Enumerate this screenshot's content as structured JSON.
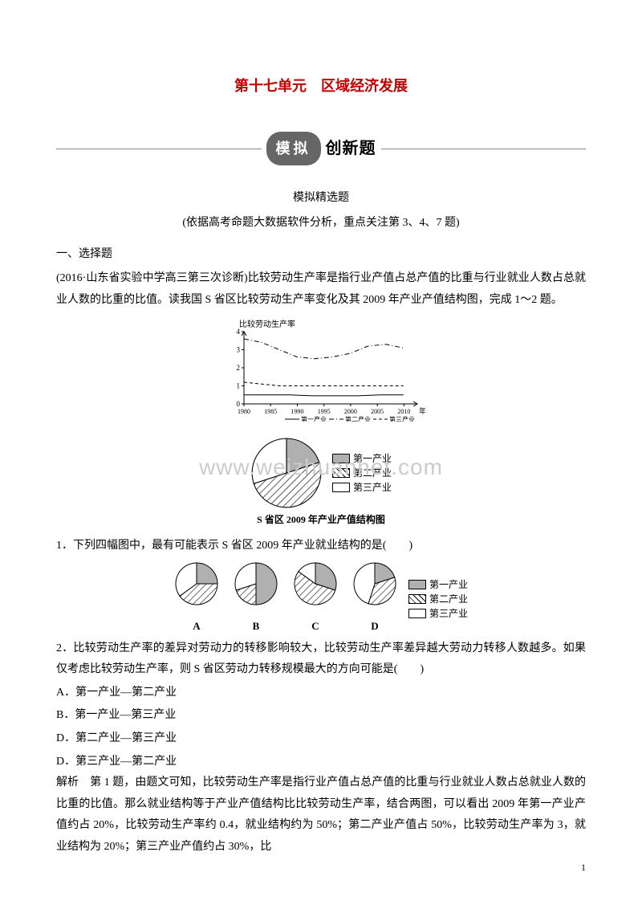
{
  "title": "第十七单元　区域经济发展",
  "banner": {
    "pill": "模拟",
    "text": "创新题"
  },
  "subTitle": "模拟精选题",
  "subNote": "(依据高考命题大数据软件分析，重点关注第 3、4、7 题)",
  "sectionHead": "一、选择题",
  "intro": "(2016·山东省实验中学高三第三次诊断)比较劳动生产率是指行业产值占总产值的比重与行业就业人数占总就业人数的比重的比值。读我国 S 省区比较劳动生产率变化及其 2009 年产业产值结构图，完成 1～2 题。",
  "lineChart": {
    "yLabel": "比较劳动生产率",
    "xTicks": [
      "1980",
      "1985",
      "1990",
      "1995",
      "2000",
      "2005",
      "2010"
    ],
    "xUnit": "年",
    "yTicks": [
      0,
      1,
      2,
      3,
      4
    ],
    "series": {
      "s1": {
        "label": "第一产业",
        "style": "solid",
        "values": [
          0.5,
          0.5,
          0.5,
          0.45,
          0.45,
          0.45,
          0.5,
          0.5
        ]
      },
      "s2": {
        "label": "第二产业",
        "style": "dashdot",
        "values": [
          3.6,
          3.4,
          3.0,
          2.6,
          2.5,
          2.6,
          2.8,
          3.2,
          3.3,
          3.1
        ]
      },
      "s3": {
        "label": "第三产业",
        "style": "dashed",
        "values": [
          1.2,
          1.1,
          1.0,
          1.0,
          1.0,
          1.0,
          1.0,
          1.0,
          1.0,
          1.0
        ]
      }
    },
    "colors": {
      "axis": "#000000",
      "grid": "#aaaaaa",
      "line": "#000000",
      "bg": "#ffffff"
    }
  },
  "mainPie": {
    "caption": "S 省区 2009 年产业产值结构图",
    "slices": [
      {
        "label": "第一产业",
        "value": 20,
        "fill": "solid-gray"
      },
      {
        "label": "第二产业",
        "value": 50,
        "fill": "hatch"
      },
      {
        "label": "第三产业",
        "value": 30,
        "fill": "white"
      }
    ],
    "colors": {
      "solid": "#b0b0b0",
      "white": "#ffffff",
      "stroke": "#000000"
    }
  },
  "q1": "1．下列四幅图中，最有可能表示 S 省区 2009 年产业就业结构的是(　　)",
  "optionPies": {
    "legend": [
      "第一产业",
      "第二产业",
      "第三产业"
    ],
    "items": [
      {
        "id": "A",
        "slices": [
          25,
          40,
          35
        ]
      },
      {
        "id": "B",
        "slices": [
          50,
          20,
          30
        ]
      },
      {
        "id": "C",
        "slices": [
          30,
          55,
          15
        ]
      },
      {
        "id": "D",
        "slices": [
          20,
          35,
          45
        ]
      }
    ]
  },
  "q2": "2．比较劳动生产率的差异对劳动力的转移影响较大，比较劳动生产率差异越大劳动力转移人数越多。如果仅考虑比较劳动生产率，则 S 省区劳动力转移规模最大的方向可能是(　　)",
  "choices": [
    "A．第一产业—第二产业",
    "B．第一产业—第三产业",
    "D．第二产业—第三产业",
    "D．第三产业—第二产业"
  ],
  "analysisLabel": "解析",
  "analysis": "　第 1 题，由题文可知，比较劳动生产率是指行业产值占总产值的比重与行业就业人数占总就业人数的比重的比值。那么就业结构等于产业产值结构比比较劳动生产率，结合两图，可以看出 2009 年第一产业产值约占 20%，比较劳动生产率约 0.4，就业结构约为 50%；第二产业产值占 50%，比较劳动生产率为 3，就业结构为 20%；第三产业产值约占 30%，比",
  "watermark": "www.weizhuanhet.com",
  "pageNum": "1"
}
